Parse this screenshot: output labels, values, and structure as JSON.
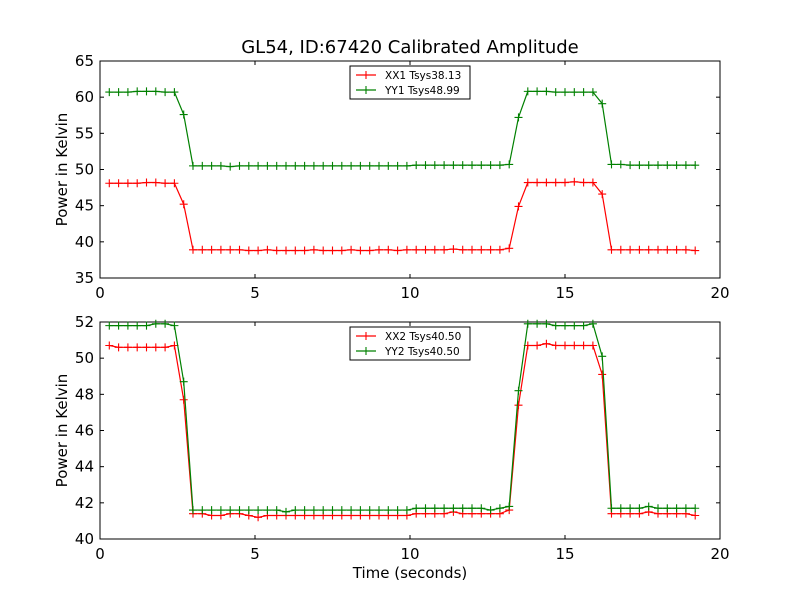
{
  "figure_title": "GL54, ID:67420 Calibrated Amplitude",
  "chart_data": [
    {
      "type": "line",
      "title": "GL54, ID:67420 Calibrated Amplitude",
      "xlabel": "",
      "ylabel": "Power in Kelvin",
      "xlim": [
        0,
        20
      ],
      "ylim": [
        35,
        65
      ],
      "xticks": [
        0,
        5,
        10,
        15,
        20
      ],
      "yticks": [
        35,
        40,
        45,
        50,
        55,
        60,
        65
      ],
      "legend_position": "top-center",
      "series": [
        {
          "name": "XX1 Tsys38.13",
          "color": "#ff0000",
          "x": [
            0.3,
            0.6,
            0.9,
            1.2,
            1.5,
            1.8,
            2.1,
            2.4,
            2.7,
            3.0,
            3.3,
            3.6,
            3.9,
            4.2,
            4.5,
            4.8,
            5.1,
            5.4,
            5.7,
            6.0,
            6.3,
            6.6,
            6.9,
            7.2,
            7.5,
            7.8,
            8.1,
            8.4,
            8.7,
            9.0,
            9.3,
            9.6,
            9.9,
            10.2,
            10.5,
            10.8,
            11.1,
            11.4,
            11.7,
            12.0,
            12.3,
            12.6,
            12.9,
            13.2,
            13.5,
            13.8,
            14.1,
            14.4,
            14.7,
            15.0,
            15.3,
            15.6,
            15.9,
            16.2,
            16.5,
            16.8,
            17.1,
            17.4,
            17.7,
            18.0,
            18.3,
            18.6,
            18.9,
            19.2
          ],
          "y": [
            48.1,
            48.1,
            48.1,
            48.1,
            48.2,
            48.2,
            48.1,
            48.1,
            45.2,
            38.9,
            38.9,
            38.9,
            38.9,
            38.9,
            38.9,
            38.8,
            38.8,
            38.9,
            38.8,
            38.8,
            38.8,
            38.8,
            38.9,
            38.8,
            38.8,
            38.8,
            38.9,
            38.8,
            38.8,
            38.9,
            38.9,
            38.8,
            38.9,
            38.9,
            38.9,
            38.9,
            38.9,
            39.0,
            38.9,
            38.9,
            38.9,
            38.9,
            38.9,
            39.1,
            44.9,
            48.2,
            48.2,
            48.2,
            48.2,
            48.2,
            48.3,
            48.2,
            48.2,
            46.6,
            38.9,
            38.9,
            38.9,
            38.9,
            38.9,
            38.9,
            38.9,
            38.9,
            38.9,
            38.8
          ]
        },
        {
          "name": "YY1 Tsys48.99",
          "color": "#008000",
          "x": [
            0.3,
            0.6,
            0.9,
            1.2,
            1.5,
            1.8,
            2.1,
            2.4,
            2.7,
            3.0,
            3.3,
            3.6,
            3.9,
            4.2,
            4.5,
            4.8,
            5.1,
            5.4,
            5.7,
            6.0,
            6.3,
            6.6,
            6.9,
            7.2,
            7.5,
            7.8,
            8.1,
            8.4,
            8.7,
            9.0,
            9.3,
            9.6,
            9.9,
            10.2,
            10.5,
            10.8,
            11.1,
            11.4,
            11.7,
            12.0,
            12.3,
            12.6,
            12.9,
            13.2,
            13.5,
            13.8,
            14.1,
            14.4,
            14.7,
            15.0,
            15.3,
            15.6,
            15.9,
            16.2,
            16.5,
            16.8,
            17.1,
            17.4,
            17.7,
            18.0,
            18.3,
            18.6,
            18.9,
            19.2
          ],
          "y": [
            60.7,
            60.7,
            60.7,
            60.8,
            60.8,
            60.8,
            60.7,
            60.7,
            57.6,
            50.5,
            50.5,
            50.5,
            50.5,
            50.4,
            50.5,
            50.5,
            50.5,
            50.5,
            50.5,
            50.5,
            50.5,
            50.5,
            50.5,
            50.5,
            50.5,
            50.5,
            50.5,
            50.5,
            50.5,
            50.5,
            50.5,
            50.5,
            50.5,
            50.6,
            50.6,
            50.6,
            50.6,
            50.6,
            50.6,
            50.6,
            50.6,
            50.6,
            50.6,
            50.7,
            57.2,
            60.8,
            60.8,
            60.8,
            60.7,
            60.7,
            60.7,
            60.7,
            60.7,
            59.1,
            50.7,
            50.7,
            50.6,
            50.6,
            50.6,
            50.6,
            50.6,
            50.6,
            50.6,
            50.6
          ]
        }
      ]
    },
    {
      "type": "line",
      "title": "",
      "xlabel": "Time (seconds)",
      "ylabel": "Power in Kelvin",
      "xlim": [
        0,
        20
      ],
      "ylim": [
        40,
        52
      ],
      "xticks": [
        0,
        5,
        10,
        15,
        20
      ],
      "yticks": [
        40,
        42,
        44,
        46,
        48,
        50,
        52
      ],
      "legend_position": "top-center",
      "series": [
        {
          "name": "XX2 Tsys40.50",
          "color": "#ff0000",
          "x": [
            0.3,
            0.6,
            0.9,
            1.2,
            1.5,
            1.8,
            2.1,
            2.4,
            2.7,
            3.0,
            3.3,
            3.6,
            3.9,
            4.2,
            4.5,
            4.8,
            5.1,
            5.4,
            5.7,
            6.0,
            6.3,
            6.6,
            6.9,
            7.2,
            7.5,
            7.8,
            8.1,
            8.4,
            8.7,
            9.0,
            9.3,
            9.6,
            9.9,
            10.2,
            10.5,
            10.8,
            11.1,
            11.4,
            11.7,
            12.0,
            12.3,
            12.6,
            12.9,
            13.2,
            13.5,
            13.8,
            14.1,
            14.4,
            14.7,
            15.0,
            15.3,
            15.6,
            15.9,
            16.2,
            16.5,
            16.8,
            17.1,
            17.4,
            17.7,
            18.0,
            18.3,
            18.6,
            18.9,
            19.2
          ],
          "y": [
            50.7,
            50.6,
            50.6,
            50.6,
            50.6,
            50.6,
            50.6,
            50.7,
            47.7,
            41.4,
            41.4,
            41.3,
            41.3,
            41.4,
            41.4,
            41.3,
            41.2,
            41.3,
            41.3,
            41.3,
            41.3,
            41.3,
            41.3,
            41.3,
            41.3,
            41.3,
            41.3,
            41.3,
            41.3,
            41.3,
            41.3,
            41.3,
            41.3,
            41.4,
            41.4,
            41.4,
            41.4,
            41.5,
            41.4,
            41.4,
            41.4,
            41.4,
            41.4,
            41.6,
            47.4,
            50.7,
            50.7,
            50.8,
            50.7,
            50.7,
            50.7,
            50.7,
            50.7,
            49.1,
            41.4,
            41.4,
            41.4,
            41.4,
            41.5,
            41.4,
            41.4,
            41.4,
            41.4,
            41.3
          ]
        },
        {
          "name": "YY2 Tsys40.50",
          "color": "#008000",
          "x": [
            0.3,
            0.6,
            0.9,
            1.2,
            1.5,
            1.8,
            2.1,
            2.4,
            2.7,
            3.0,
            3.3,
            3.6,
            3.9,
            4.2,
            4.5,
            4.8,
            5.1,
            5.4,
            5.7,
            6.0,
            6.3,
            6.6,
            6.9,
            7.2,
            7.5,
            7.8,
            8.1,
            8.4,
            8.7,
            9.0,
            9.3,
            9.6,
            9.9,
            10.2,
            10.5,
            10.8,
            11.1,
            11.4,
            11.7,
            12.0,
            12.3,
            12.6,
            12.9,
            13.2,
            13.5,
            13.8,
            14.1,
            14.4,
            14.7,
            15.0,
            15.3,
            15.6,
            15.9,
            16.2,
            16.5,
            16.8,
            17.1,
            17.4,
            17.7,
            18.0,
            18.3,
            18.6,
            18.9,
            19.2
          ],
          "y": [
            51.8,
            51.8,
            51.8,
            51.8,
            51.8,
            51.9,
            51.9,
            51.8,
            48.7,
            41.6,
            41.6,
            41.6,
            41.6,
            41.6,
            41.6,
            41.6,
            41.6,
            41.6,
            41.6,
            41.5,
            41.6,
            41.6,
            41.6,
            41.6,
            41.6,
            41.6,
            41.6,
            41.6,
            41.6,
            41.6,
            41.6,
            41.6,
            41.6,
            41.7,
            41.7,
            41.7,
            41.7,
            41.7,
            41.7,
            41.7,
            41.7,
            41.6,
            41.7,
            41.8,
            48.2,
            51.9,
            51.9,
            51.9,
            51.8,
            51.8,
            51.8,
            51.8,
            51.9,
            50.1,
            41.7,
            41.7,
            41.7,
            41.7,
            41.8,
            41.7,
            41.7,
            41.7,
            41.7,
            41.7
          ]
        }
      ]
    }
  ]
}
